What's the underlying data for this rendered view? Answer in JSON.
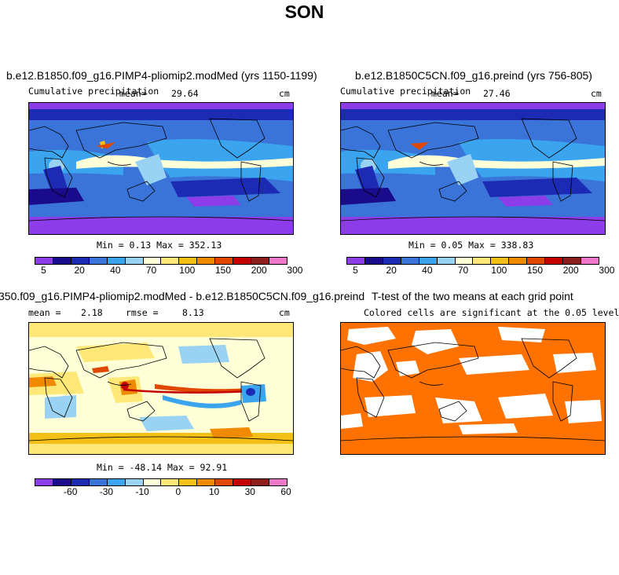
{
  "page": {
    "title": "SON"
  },
  "panels": {
    "top_left": {
      "title": "b.e12.B1850.f09_g16.PIMP4-pliomip2.modMed (yrs 1150-1199)",
      "variable": "Cumulative precipitation",
      "mean_label": "mean=",
      "mean_value": "29.64",
      "units": "cm",
      "stats": "Min =   0.13 Max = 352.13"
    },
    "top_right": {
      "title": "b.e12.B1850C5CN.f09_g16.preind (yrs 756-805)",
      "variable": "Cumulative precipitation",
      "mean_label": "mean=",
      "mean_value": "27.46",
      "units": "cm",
      "stats": "Min =   0.05 Max = 338.83"
    },
    "bottom_left": {
      "title": "350.f09_g16.PIMP4-pliomip2.modMed - b.e12.B1850C5CN.f09_g16.preind",
      "mean_label": "mean =",
      "mean_value": "2.18",
      "rmse_label": "rmse =",
      "rmse_value": "8.13",
      "units": "cm",
      "stats": "Min = -48.14 Max =  92.91"
    },
    "bottom_right": {
      "title": "T-test of the two means at each grid point",
      "subtitle": "Colored cells are significant at the 0.05 level"
    }
  },
  "colorbars": {
    "precip": {
      "colors": [
        "#8c3ce8",
        "#1a0a8c",
        "#1c2ab4",
        "#3a74d8",
        "#3aa4ee",
        "#9ad2f4",
        "#ffffd8",
        "#ffe878",
        "#f4c018",
        "#f08a00",
        "#e04800",
        "#c40000",
        "#8c1e1e",
        "#ee78c8"
      ],
      "tick_labels": [
        "5",
        "20",
        "40",
        "70",
        "100",
        "150",
        "200",
        "300"
      ]
    },
    "diff": {
      "colors": [
        "#8c3ce8",
        "#1a0a8c",
        "#1c2ab4",
        "#3a74d8",
        "#3aa4ee",
        "#9ad2f4",
        "#ffffd8",
        "#ffe878",
        "#f4c018",
        "#f08a00",
        "#e04800",
        "#c40000",
        "#8c1e1e",
        "#ee78c8"
      ],
      "tick_labels": [
        "-60",
        "-30",
        "-10",
        "0",
        "10",
        "30",
        "60"
      ]
    }
  },
  "colors": {
    "significance": "#ff7200"
  }
}
